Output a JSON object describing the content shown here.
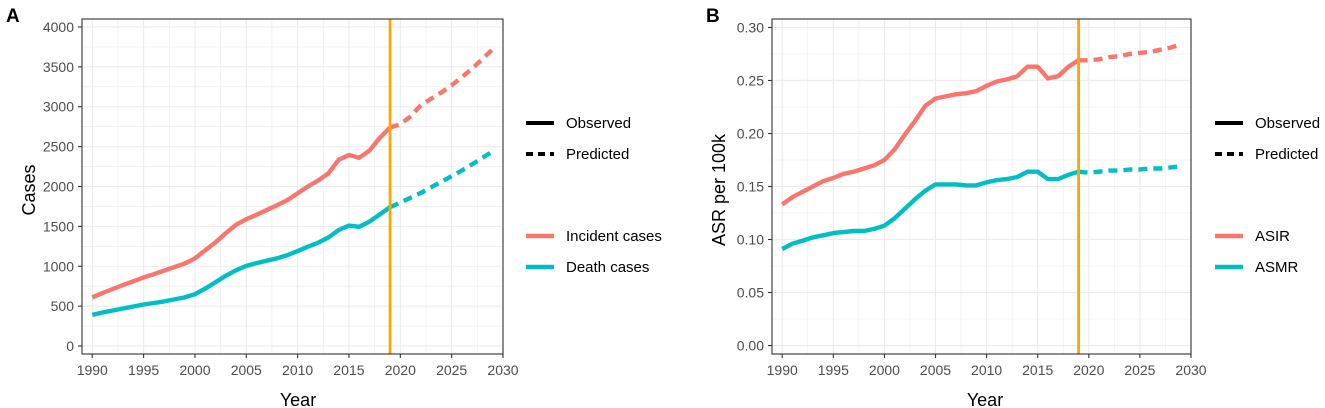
{
  "chart_data": [
    {
      "panel": "A",
      "type": "line",
      "xlabel": "Year",
      "ylabel": "Cases",
      "xlim": [
        1989,
        2030
      ],
      "ylim": [
        -100,
        4100
      ],
      "x_ticks": [
        1990,
        1995,
        2000,
        2005,
        2010,
        2015,
        2020,
        2025,
        2030
      ],
      "y_ticks": [
        0,
        500,
        1000,
        1500,
        2000,
        2500,
        3000,
        3500,
        4000
      ],
      "x_tick_labels": [
        "1990",
        "1995",
        "2000",
        "2005",
        "2010",
        "2015",
        "2020",
        "2025",
        "2030"
      ],
      "y_tick_labels": [
        "0",
        "500",
        "1000",
        "1500",
        "2000",
        "2500",
        "3000",
        "3500",
        "4000"
      ],
      "vline": {
        "x": 2019,
        "color": "#FFA500"
      },
      "legend_linetype": [
        "Observed",
        "Predicted"
      ],
      "legend_series": [
        "Incident cases",
        "Death cases"
      ],
      "series": [
        {
          "name": "Incident cases",
          "color": "#F8766D",
          "observed": {
            "x": [
              1990,
              1991,
              1992,
              1993,
              1994,
              1995,
              1996,
              1997,
              1998,
              1999,
              2000,
              2001,
              2002,
              2003,
              2004,
              2005,
              2006,
              2007,
              2008,
              2009,
              2010,
              2011,
              2012,
              2013,
              2014,
              2015,
              2016,
              2017,
              2018,
              2019
            ],
            "y": [
              610,
              665,
              715,
              765,
              812,
              860,
              900,
              945,
              990,
              1035,
              1100,
              1200,
              1300,
              1415,
              1520,
              1590,
              1645,
              1705,
              1765,
              1830,
              1915,
              2000,
              2075,
              2165,
              2335,
              2395,
              2360,
              2450,
              2610,
              2740
            ]
          },
          "predicted": {
            "x": [
              2019,
              2020,
              2021,
              2022,
              2023,
              2024,
              2025,
              2026,
              2027,
              2028,
              2029
            ],
            "y": [
              2740,
              2780,
              2880,
              3020,
              3100,
              3180,
              3270,
              3370,
              3480,
              3600,
              3720
            ]
          }
        },
        {
          "name": "Death cases",
          "color": "#00BFC4",
          "observed": {
            "x": [
              1990,
              1991,
              1992,
              1993,
              1994,
              1995,
              1996,
              1997,
              1998,
              1999,
              2000,
              2001,
              2002,
              2003,
              2004,
              2005,
              2006,
              2007,
              2008,
              2009,
              2010,
              2011,
              2012,
              2013,
              2014,
              2015,
              2016,
              2017,
              2018,
              2019
            ],
            "y": [
              390,
              420,
              445,
              470,
              495,
              520,
              540,
              560,
              585,
              610,
              650,
              720,
              800,
              880,
              950,
              1005,
              1040,
              1070,
              1100,
              1140,
              1190,
              1245,
              1295,
              1360,
              1455,
              1510,
              1495,
              1560,
              1650,
              1740
            ]
          },
          "predicted": {
            "x": [
              2019,
              2020,
              2021,
              2022,
              2023,
              2024,
              2025,
              2026,
              2027,
              2028,
              2029
            ],
            "y": [
              1740,
              1800,
              1860,
              1920,
              1990,
              2060,
              2130,
              2200,
              2280,
              2360,
              2440
            ]
          }
        }
      ]
    },
    {
      "panel": "B",
      "type": "line",
      "xlabel": "Year",
      "ylabel": "ASR per 100k",
      "xlim": [
        1989,
        2030
      ],
      "ylim": [
        -0.008,
        0.308
      ],
      "x_ticks": [
        1990,
        1995,
        2000,
        2005,
        2010,
        2015,
        2020,
        2025,
        2030
      ],
      "y_ticks": [
        0,
        0.05,
        0.1,
        0.15,
        0.2,
        0.25,
        0.3
      ],
      "x_tick_labels": [
        "1990",
        "1995",
        "2000",
        "2005",
        "2010",
        "2015",
        "2020",
        "2025",
        "2030"
      ],
      "y_tick_labels": [
        "0.00",
        "0.05",
        "0.10",
        "0.15",
        "0.20",
        "0.25",
        "0.30"
      ],
      "vline": {
        "x": 2019,
        "color": "#FFA500"
      },
      "legend_linetype": [
        "Observed",
        "Predicted"
      ],
      "legend_series": [
        "ASIR",
        "ASMR"
      ],
      "series": [
        {
          "name": "ASIR",
          "color": "#F8766D",
          "observed": {
            "x": [
              1990,
              1991,
              1992,
              1993,
              1994,
              1995,
              1996,
              1997,
              1998,
              1999,
              2000,
              2001,
              2002,
              2003,
              2004,
              2005,
              2006,
              2007,
              2008,
              2009,
              2010,
              2011,
              2012,
              2013,
              2014,
              2015,
              2016,
              2017,
              2018,
              2019
            ],
            "y": [
              0.133,
              0.14,
              0.145,
              0.15,
              0.155,
              0.158,
              0.162,
              0.164,
              0.167,
              0.17,
              0.175,
              0.185,
              0.199,
              0.212,
              0.226,
              0.233,
              0.235,
              0.237,
              0.238,
              0.24,
              0.245,
              0.249,
              0.251,
              0.254,
              0.263,
              0.263,
              0.252,
              0.254,
              0.263,
              0.269
            ]
          },
          "predicted": {
            "x": [
              2019,
              2020,
              2021,
              2022,
              2023,
              2024,
              2025,
              2026,
              2027,
              2028,
              2029
            ],
            "y": [
              0.269,
              0.269,
              0.27,
              0.272,
              0.273,
              0.275,
              0.276,
              0.277,
              0.279,
              0.281,
              0.284
            ]
          }
        },
        {
          "name": "ASMR",
          "color": "#00BFC4",
          "observed": {
            "x": [
              1990,
              1991,
              1992,
              1993,
              1994,
              1995,
              1996,
              1997,
              1998,
              1999,
              2000,
              2001,
              2002,
              2003,
              2004,
              2005,
              2006,
              2007,
              2008,
              2009,
              2010,
              2011,
              2012,
              2013,
              2014,
              2015,
              2016,
              2017,
              2018,
              2019
            ],
            "y": [
              0.091,
              0.096,
              0.099,
              0.102,
              0.104,
              0.106,
              0.107,
              0.108,
              0.108,
              0.11,
              0.113,
              0.12,
              0.129,
              0.138,
              0.146,
              0.152,
              0.152,
              0.152,
              0.151,
              0.151,
              0.154,
              0.156,
              0.157,
              0.159,
              0.164,
              0.164,
              0.157,
              0.157,
              0.161,
              0.164
            ]
          },
          "predicted": {
            "x": [
              2019,
              2020,
              2021,
              2022,
              2023,
              2024,
              2025,
              2026,
              2027,
              2028,
              2029
            ],
            "y": [
              0.164,
              0.163,
              0.164,
              0.165,
              0.165,
              0.166,
              0.166,
              0.167,
              0.167,
              0.168,
              0.169
            ]
          }
        }
      ]
    }
  ]
}
